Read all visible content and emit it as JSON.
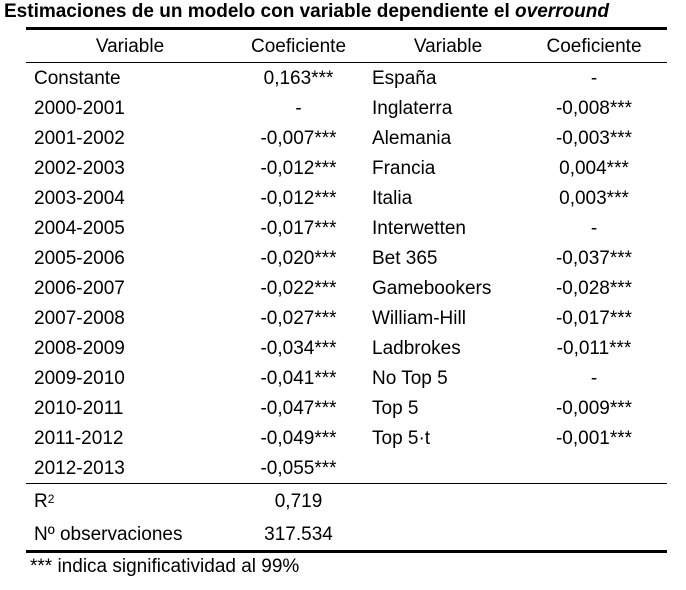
{
  "title": {
    "text_main": "Estimaciones de un modelo con variable dependiente el ",
    "text_italic": "overround"
  },
  "headers": {
    "variable_left": "Variable",
    "coef_left": "Coeficiente",
    "variable_right": "Variable",
    "coef_right": "Coeficiente"
  },
  "left_rows": [
    {
      "variable": "Constante",
      "coef": "0,163***"
    },
    {
      "variable": "2000-2001",
      "coef": "-"
    },
    {
      "variable": "2001-2002",
      "coef": "-0,007***"
    },
    {
      "variable": "2002-2003",
      "coef": "-0,012***"
    },
    {
      "variable": "2003-2004",
      "coef": "-0,012***"
    },
    {
      "variable": "2004-2005",
      "coef": "-0,017***"
    },
    {
      "variable": "2005-2006",
      "coef": "-0,020***"
    },
    {
      "variable": "2006-2007",
      "coef": "-0,022***"
    },
    {
      "variable": "2007-2008",
      "coef": "-0,027***"
    },
    {
      "variable": "2008-2009",
      "coef": "-0,034***"
    },
    {
      "variable": "2009-2010",
      "coef": "-0,041***"
    },
    {
      "variable": "2010-2011",
      "coef": "-0,047***"
    },
    {
      "variable": "2011-2012",
      "coef": "-0,049***"
    },
    {
      "variable": "2012-2013",
      "coef": "-0,055***"
    }
  ],
  "right_rows": [
    {
      "variable": "España",
      "coef": "-"
    },
    {
      "variable": "Inglaterra",
      "coef": "-0,008***"
    },
    {
      "variable": "Alemania",
      "coef": "-0,003***"
    },
    {
      "variable": "Francia",
      "coef": "0,004***"
    },
    {
      "variable": "Italia",
      "coef": "0,003***"
    },
    {
      "variable": "Interwetten",
      "coef": "-"
    },
    {
      "variable": "Bet 365",
      "coef": "-0,037***"
    },
    {
      "variable": "Gamebookers",
      "coef": "-0,028***"
    },
    {
      "variable": "William-Hill",
      "coef": "-0,017***"
    },
    {
      "variable": "Ladbrokes",
      "coef": "-0,011***"
    },
    {
      "variable": "No Top 5",
      "coef": "-"
    },
    {
      "variable": "Top 5",
      "coef": "-0,009***"
    },
    {
      "variable": "Top 5·t",
      "coef": "-0,001***"
    }
  ],
  "stats": {
    "r2_label": "R",
    "r2_sup": "2",
    "r2_value": "0,719",
    "obs_label": "Nº observaciones",
    "obs_value": "317.534"
  },
  "footnote": "*** indica significatividad al 99%"
}
